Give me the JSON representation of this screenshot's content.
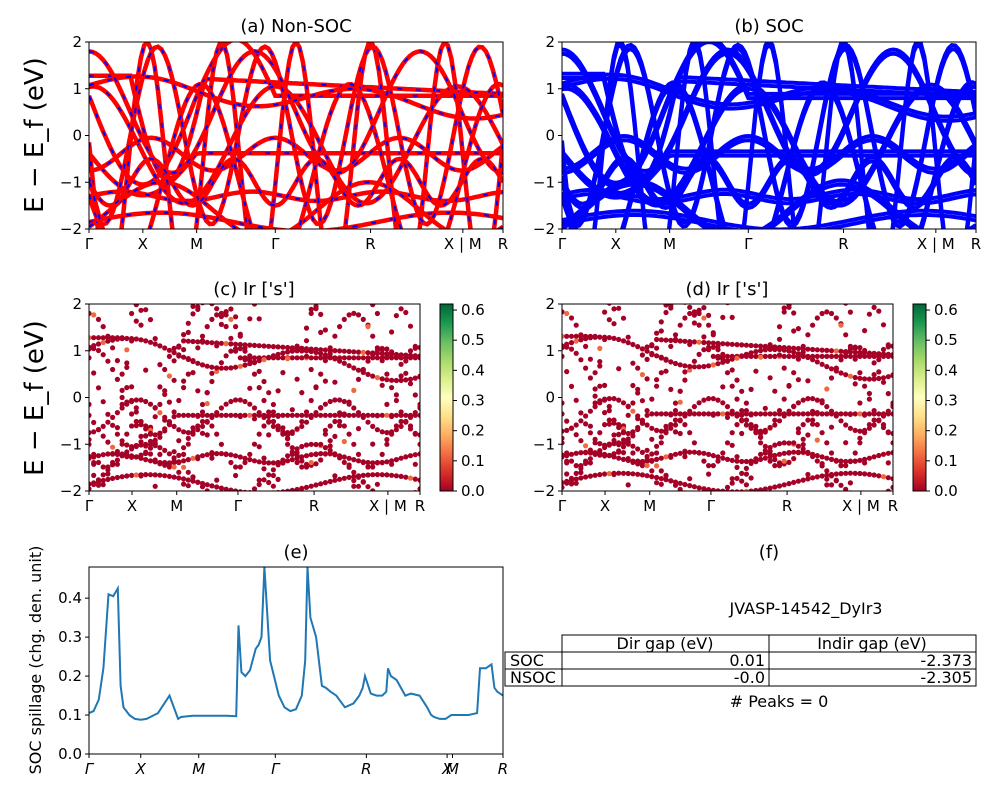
{
  "panels": {
    "a": {
      "title": "(a) Non-SOC"
    },
    "b": {
      "title": "(b) SOC"
    },
    "c": {
      "title": "(c)  Ir ['s']"
    },
    "d": {
      "title": "(d) Ir ['s']"
    },
    "e": {
      "title": "(e)"
    },
    "f": {
      "title": "(f)"
    }
  },
  "band_ylabel": "E − E_f (eV)",
  "band_k_labels": [
    "Γ",
    "X",
    "M",
    "Γ",
    "R",
    "X | M",
    "R"
  ],
  "band_yticks": [
    "2",
    "1",
    "0",
    "−1",
    "−2"
  ],
  "colorbar_ticks": [
    "0.6",
    "0.5",
    "0.4",
    "0.3",
    "0.2",
    "0.1",
    "0.0"
  ],
  "colors": {
    "nonsoc_red": "#ff0000",
    "nonsoc_blue": "#0000ff",
    "soc_blue": "#0000ff",
    "spillage_line": "#1f77b4"
  },
  "spillage": {
    "ylabel": "SOC spillage (chg. den. unit)",
    "k_labels": [
      "Γ",
      "X",
      "M",
      "Γ",
      "R",
      "X",
      "M",
      "R"
    ],
    "yticks": [
      "0.0",
      "0.1",
      "0.2",
      "0.3",
      "0.4"
    ]
  },
  "summary": {
    "material": "JVASP-14542_DyIr3",
    "col_dir": "Dir gap (eV)",
    "col_indir": "Indir gap (eV)",
    "row_soc": "SOC",
    "row_nsoc": "NSOC",
    "soc_dir": "0.01",
    "soc_indir": "-2.373",
    "nsoc_dir": "-0.0",
    "nsoc_indir": "-2.305",
    "peaks": "# Peaks = 0"
  },
  "chart_data": [
    {
      "type": "line",
      "title": "(a) Non-SOC",
      "ylabel": "E − E_f (eV)",
      "ylim": [
        -2,
        2
      ],
      "x_tick_labels": [
        "Γ",
        "X",
        "M",
        "Γ",
        "R",
        "X | M",
        "R"
      ]
    },
    {
      "type": "line",
      "title": "(b) SOC",
      "ylim": [
        -2,
        2
      ],
      "x_tick_labels": [
        "Γ",
        "X",
        "M",
        "Γ",
        "R",
        "X | M",
        "R"
      ]
    },
    {
      "type": "scatter",
      "title": "(c)  Ir ['s']",
      "ylabel": "E − E_f (eV)",
      "ylim": [
        -2,
        2
      ],
      "colorbar_range": [
        0.0,
        0.62
      ],
      "x_tick_labels": [
        "Γ",
        "X",
        "M",
        "Γ",
        "R",
        "X | M",
        "R"
      ]
    },
    {
      "type": "scatter",
      "title": "(d) Ir ['s']",
      "ylim": [
        -2,
        2
      ],
      "colorbar_range": [
        0.0,
        0.62
      ],
      "x_tick_labels": [
        "Γ",
        "X",
        "M",
        "Γ",
        "R",
        "X | M",
        "R"
      ]
    },
    {
      "type": "line",
      "title": "(e)",
      "ylabel": "SOC spillage (chg. den. unit)",
      "ylim": [
        0.0,
        0.48
      ],
      "x_tick_labels": [
        "Γ",
        "X",
        "M",
        "Γ",
        "R",
        "X",
        "M",
        "R"
      ],
      "x": [
        0.0,
        0.08,
        0.17,
        0.25,
        0.34,
        0.42,
        0.5,
        0.55,
        0.6,
        0.65,
        0.7,
        0.75,
        0.8,
        0.9,
        1.0,
        1.2,
        1.4,
        1.55,
        1.6,
        1.8,
        2.0,
        2.2,
        2.4,
        2.56,
        2.6,
        2.65,
        2.72,
        2.8,
        2.9,
        2.95,
        3.0,
        3.05,
        3.15,
        3.3,
        3.4,
        3.5,
        3.6,
        3.7,
        3.76,
        3.8,
        3.85,
        3.95,
        4.05,
        4.12,
        4.2,
        4.3,
        4.45,
        4.6,
        4.7,
        4.76,
        4.8,
        4.9,
        5.0,
        5.1,
        5.17,
        5.2,
        5.25,
        5.35,
        5.5,
        5.6,
        5.75,
        5.88,
        5.95,
        6.0,
        6.1,
        6.2,
        6.3,
        6.35,
        6.4,
        6.5,
        6.6,
        6.75,
        6.8,
        6.9,
        7.0,
        7.05,
        7.1,
        7.2
      ],
      "values": [
        0.105,
        0.11,
        0.14,
        0.22,
        0.41,
        0.405,
        0.425,
        0.175,
        0.12,
        0.11,
        0.1,
        0.095,
        0.09,
        0.088,
        0.09,
        0.105,
        0.15,
        0.09,
        0.095,
        0.098,
        0.098,
        0.098,
        0.098,
        0.097,
        0.33,
        0.21,
        0.2,
        0.215,
        0.27,
        0.28,
        0.3,
        0.48,
        0.24,
        0.15,
        0.12,
        0.11,
        0.115,
        0.15,
        0.24,
        0.48,
        0.35,
        0.3,
        0.175,
        0.17,
        0.16,
        0.15,
        0.12,
        0.13,
        0.15,
        0.17,
        0.2,
        0.155,
        0.15,
        0.15,
        0.16,
        0.22,
        0.2,
        0.19,
        0.15,
        0.155,
        0.15,
        0.12,
        0.1,
        0.095,
        0.09,
        0.09,
        0.1,
        0.1,
        0.1,
        0.1,
        0.1,
        0.105,
        0.22,
        0.22,
        0.23,
        0.17,
        0.16,
        0.15
      ]
    },
    {
      "type": "table",
      "title": "(f)",
      "columns": [
        "",
        "Dir gap (eV)",
        "Indir gap (eV)"
      ],
      "rows": [
        [
          "SOC",
          "0.01",
          "-2.373"
        ],
        [
          "NSOC",
          "-0.0",
          "-2.305"
        ]
      ]
    }
  ]
}
